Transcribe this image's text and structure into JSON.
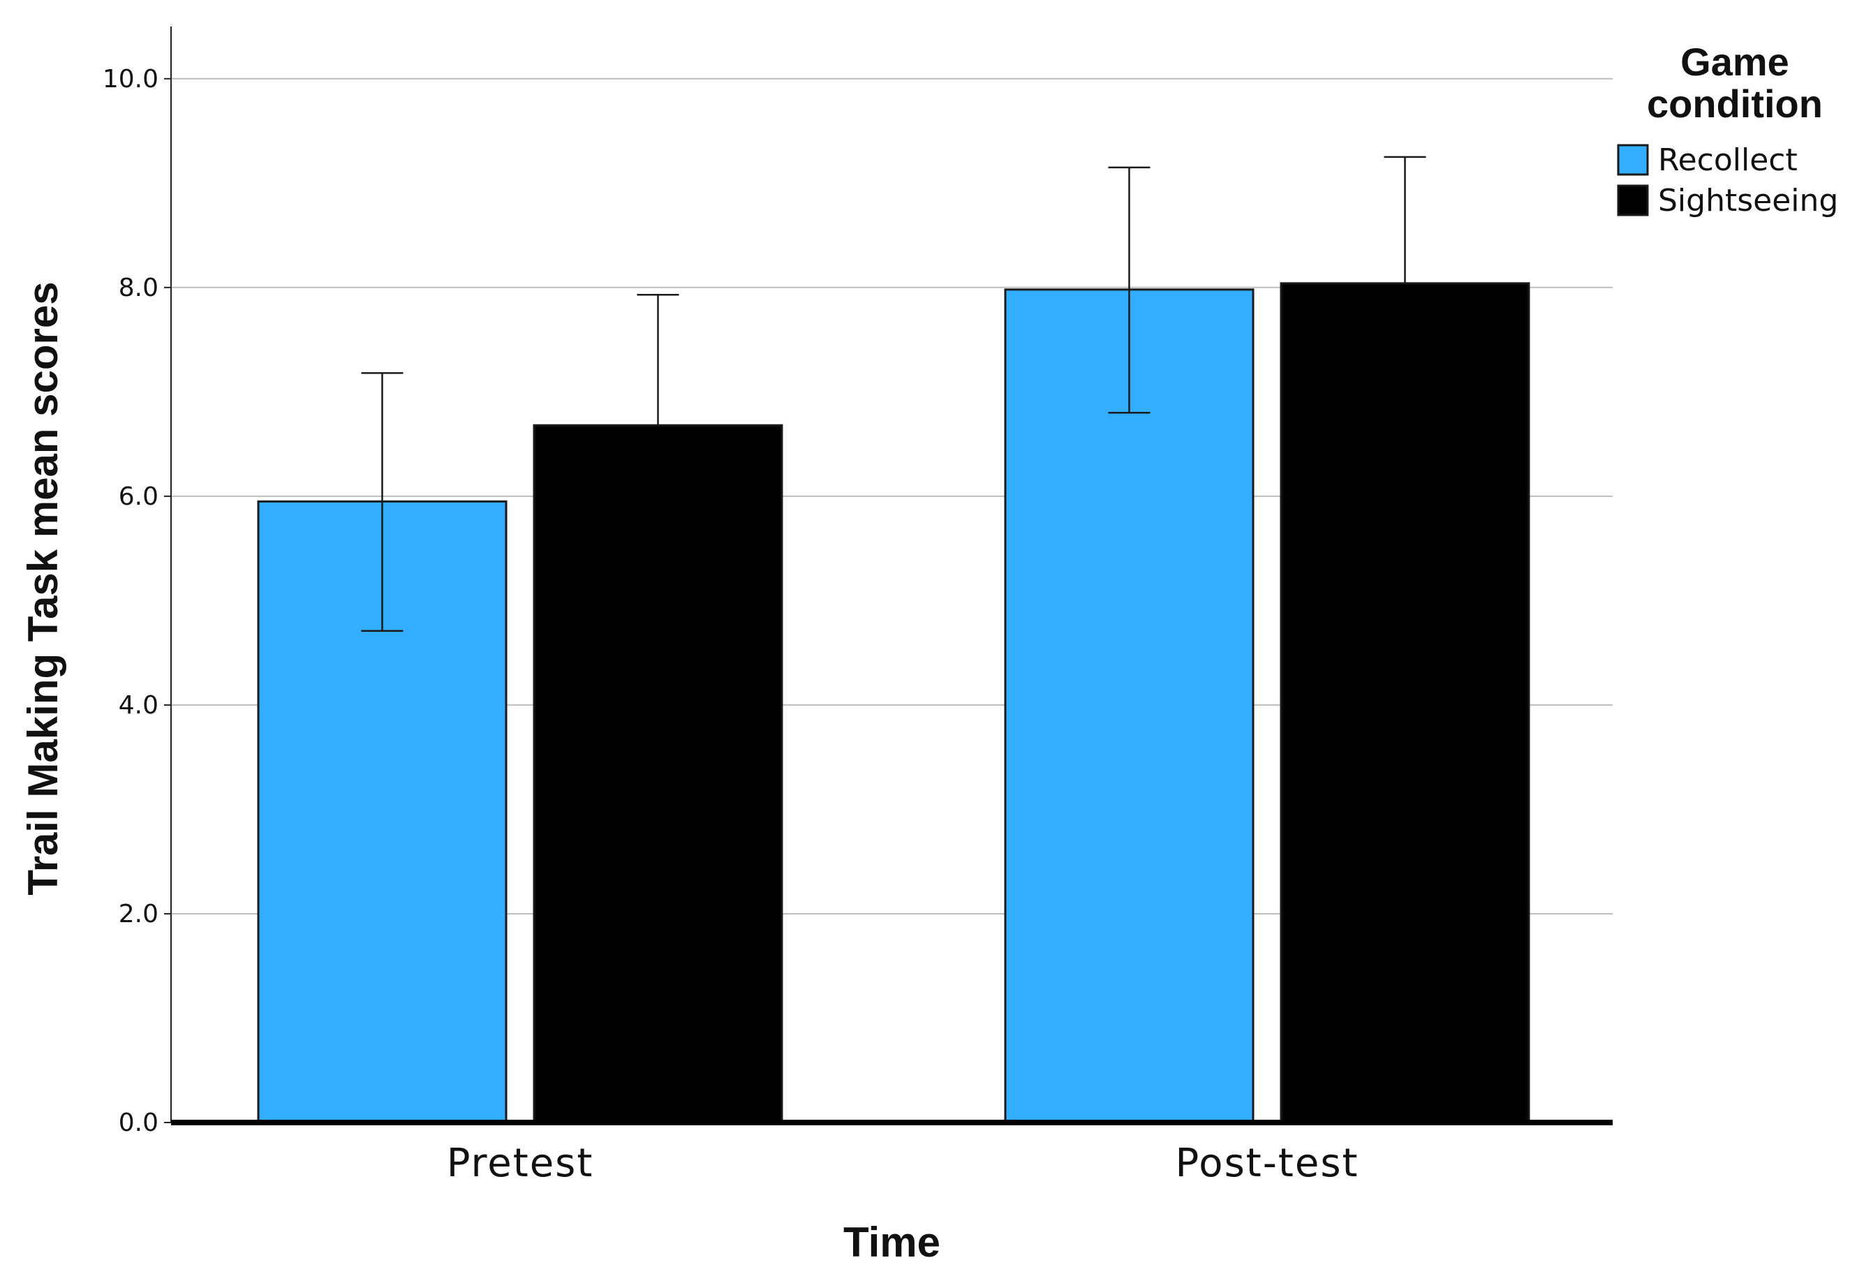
{
  "chart_data": {
    "type": "bar",
    "categories": [
      "Pretest",
      "Post-test"
    ],
    "series": [
      {
        "name": "Recollect",
        "color": "#33adff",
        "values": [
          5.95,
          7.98
        ],
        "error_low": [
          4.71,
          6.8
        ],
        "error_high": [
          7.18,
          9.15
        ]
      },
      {
        "name": "Sightseeing",
        "color": "#000000",
        "values": [
          6.68,
          8.04
        ],
        "error_low": [
          6.68,
          8.04
        ],
        "error_high": [
          7.93,
          9.25
        ]
      }
    ],
    "xlabel": "Time",
    "ylabel": "Trail Making Task mean scores",
    "ylim": [
      0,
      10.5
    ],
    "yticks": [
      "0.0",
      "2.0",
      "4.0",
      "6.0",
      "8.0",
      "10.0"
    ],
    "grid": true,
    "legend": {
      "title_lines": [
        "Game",
        "condition"
      ],
      "placement": "top-right"
    }
  }
}
